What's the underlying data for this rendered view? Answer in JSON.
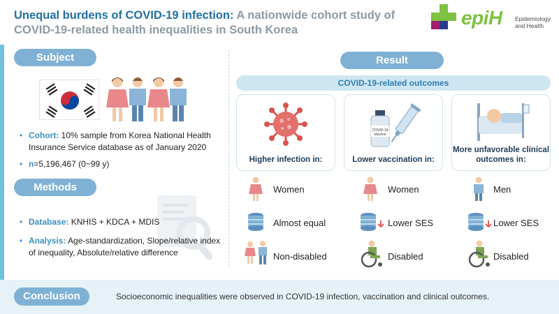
{
  "header": {
    "title_highlight": "Unequal burdens of COVID-19 infection:",
    "title_rest": " A nationwide cohort study of COVID-19-related health inequalities in South Korea",
    "logo": {
      "name": "epiH",
      "subtitle": "Epidemiology and Health"
    }
  },
  "subject": {
    "heading": "Subject",
    "cohort_label": "Cohort:",
    "cohort_text": " 10% sample from Korea National Health Insurance Service database as of January 2020",
    "n_label": "n",
    "n_text": "=5,196,467 (0~99 y)"
  },
  "methods": {
    "heading": "Methods",
    "database_label": "Database:",
    "database_text": " KNHIS + KDCA + MDIS",
    "analysis_label": "Analysis:",
    "analysis_text": " Age-standardization, Slope/relative index of inequality, Absolute/relative difference"
  },
  "result": {
    "heading": "Result",
    "bar_label": "COVID-19-related outcomes",
    "columns": [
      {
        "caption": "Higher infection in:",
        "rows": [
          "Women",
          "Almost equal",
          "Non-disabled"
        ]
      },
      {
        "caption": "Lower vaccination in:",
        "rows": [
          "Women",
          "Lower SES",
          "Disabled"
        ]
      },
      {
        "caption": "More unfavorable clinical outcomes in:",
        "rows": [
          "Men",
          "Lower SES",
          "Disabled"
        ]
      }
    ]
  },
  "conclusion": {
    "heading": "Conclusion",
    "text": "Socioeconomic inequalities were observed in COVID-19 infection, vaccination and clinical outcomes."
  },
  "colors": {
    "accent": "#7fb1d4",
    "title_blue": "#1f6fa3",
    "woman_pink": "#e8888b",
    "man_blue": "#8ab4d8",
    "arrow_red": "#e25a5a",
    "logo_green": "#7dc242"
  },
  "icons": [
    "korea-flag-icon",
    "woman-icon",
    "man-icon",
    "virus-icon",
    "vaccine-icon",
    "hospital-bed-icon",
    "database-icon",
    "down-arrow-icon",
    "wheelchair-icon"
  ]
}
